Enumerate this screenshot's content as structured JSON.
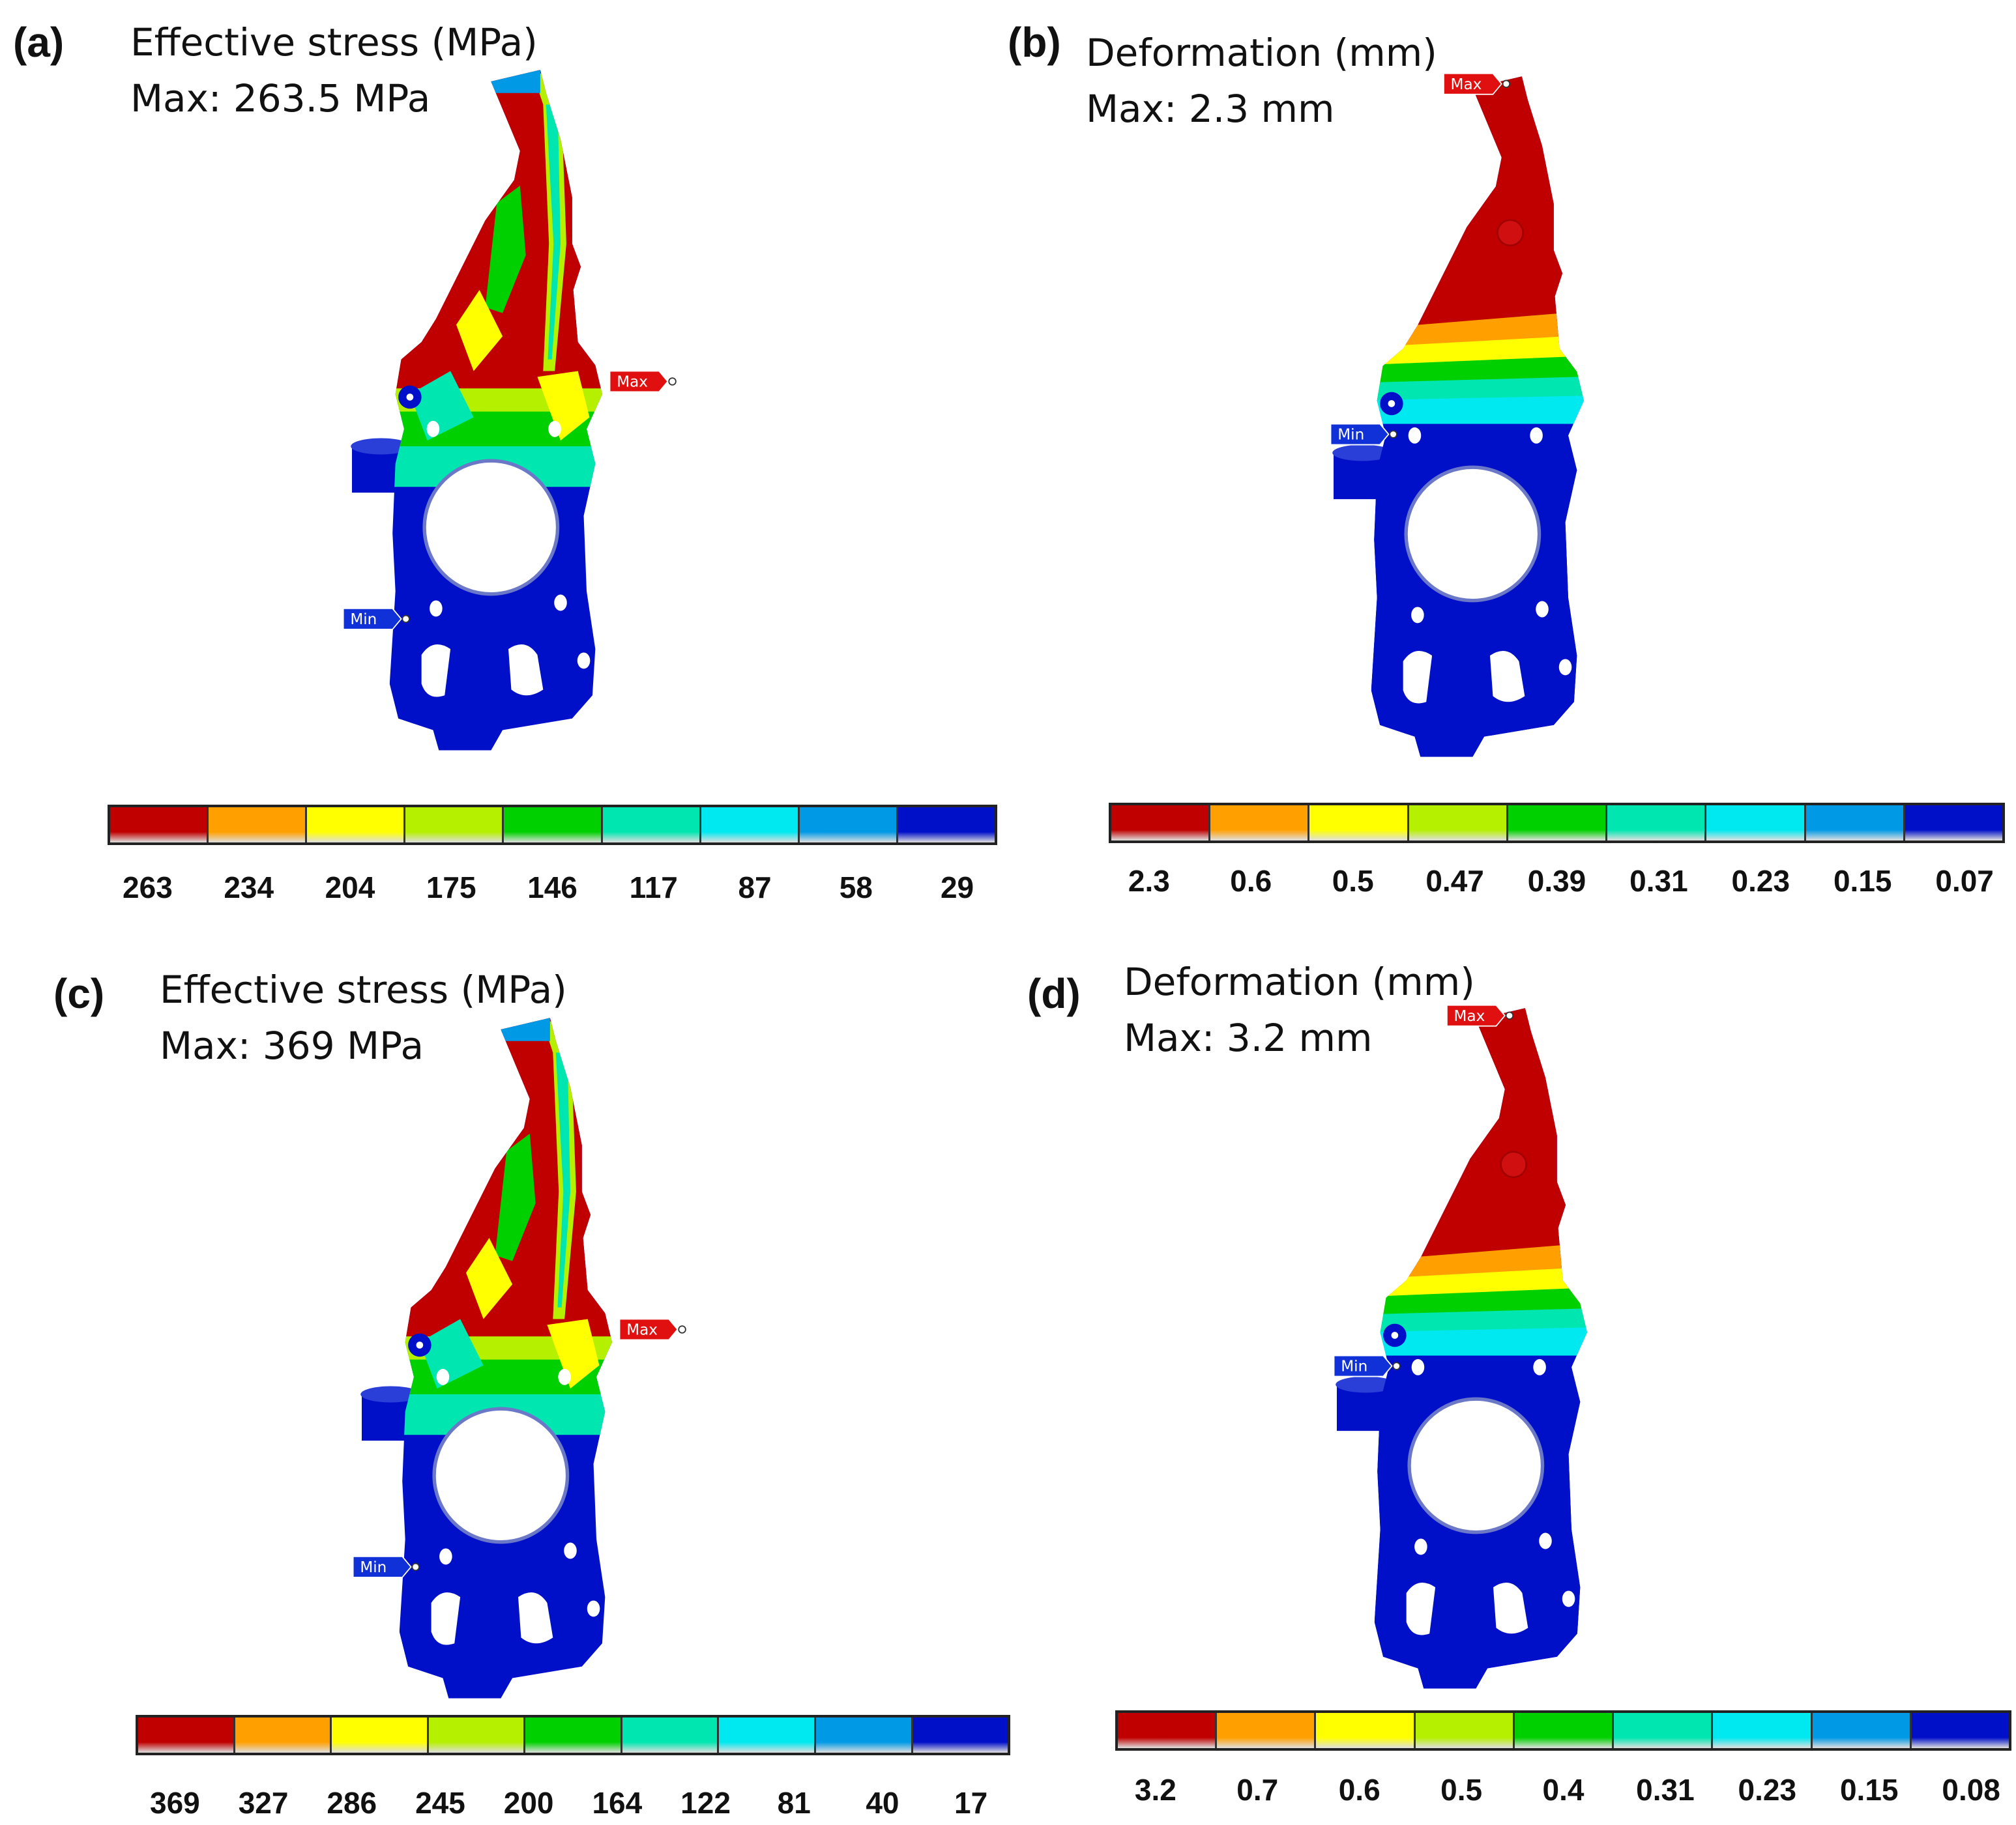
{
  "colors": {
    "scale": [
      "#c00000",
      "#ff9f00",
      "#ffff00",
      "#b5f000",
      "#00d000",
      "#00e6b0",
      "#00e8f0",
      "#0099e6",
      "#0010c8"
    ],
    "max_tag": "#e01010",
    "min_tag": "#1030d8"
  },
  "panels": [
    {
      "id": "a",
      "label": "(a)",
      "title": "Effective stress (MPa)",
      "max_text": "Max: 263.5 MPa",
      "field": "stress",
      "max_tag": "Max",
      "min_tag": "Min",
      "legend": [
        "263",
        "234",
        "204",
        "175",
        "146",
        "117",
        "87",
        "58",
        "29"
      ]
    },
    {
      "id": "b",
      "label": "(b)",
      "title": "Deformation (mm)",
      "max_text": "Max: 2.3 mm",
      "field": "deformation",
      "max_tag": "Max",
      "min_tag": "Min",
      "legend": [
        "2.3",
        "0.6",
        "0.5",
        "0.47",
        "0.39",
        "0.31",
        "0.23",
        "0.15",
        "0.07"
      ]
    },
    {
      "id": "c",
      "label": "(c)",
      "title": "Effective stress (MPa)",
      "max_text": "Max: 369 MPa",
      "field": "stress",
      "max_tag": "Max",
      "min_tag": "Min",
      "legend": [
        "369",
        "327",
        "286",
        "245",
        "200",
        "164",
        "122",
        "81",
        "40",
        "17"
      ]
    },
    {
      "id": "d",
      "label": "(d)",
      "title": "Deformation (mm)",
      "max_text": "Max: 3.2 mm",
      "field": "deformation",
      "max_tag": "Max",
      "min_tag": "Min",
      "legend": [
        "3.2",
        "0.7",
        "0.6",
        "0.5",
        "0.4",
        "0.31",
        "0.23",
        "0.15",
        "0.08"
      ]
    }
  ]
}
